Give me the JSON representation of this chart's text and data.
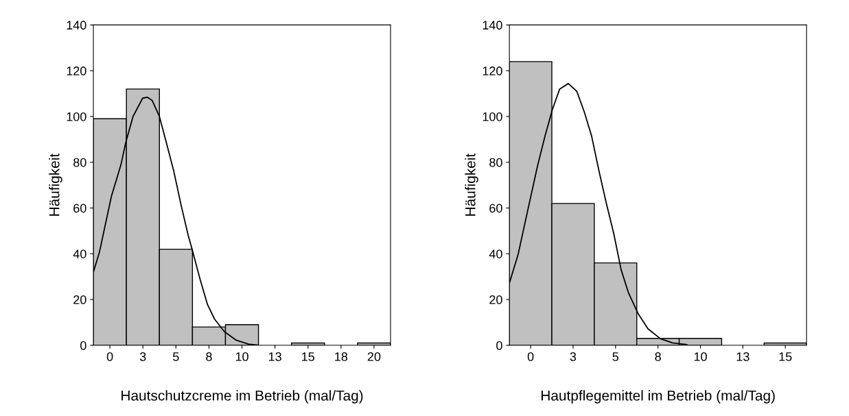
{
  "chart_data": [
    {
      "type": "histogram",
      "xlabel": "Hautschutzcreme im Betrieb (mal/Tag)",
      "ylabel": "Häufigkeit",
      "bins": [
        -1.25,
        1.25,
        3.75,
        6.25,
        8.75,
        11.25,
        13.75,
        16.25,
        18.75,
        21.25
      ],
      "values": [
        99,
        112,
        42,
        8,
        9,
        0,
        1,
        0,
        1
      ],
      "color": "#c0c0c0",
      "series": [
        {
          "type": "line",
          "color": "#000000",
          "x": [
            -1.25,
            -0.8,
            0.11,
            0.84,
            1.2,
            1.75,
            2.48,
            2.84,
            3.2,
            3.75,
            4.3,
            4.84,
            5.4,
            5.93,
            6.22,
            6.84,
            7.39,
            7.93,
            8.66,
            9.57,
            10.5,
            11.2
          ],
          "values": [
            32,
            40.5,
            65,
            79,
            88.6,
            100,
            108,
            108.4,
            107,
            100,
            88,
            76,
            61,
            48,
            42,
            28.6,
            17.8,
            11.4,
            6,
            2.2,
            0.5,
            0.1
          ]
        }
      ],
      "xlim": [
        -1.25,
        21.25
      ],
      "ylim": [
        0,
        140
      ],
      "xticks": [
        0,
        {
          "value": 2.5,
          "label": "3"
        },
        5,
        {
          "value": 7.5,
          "label": "8"
        },
        10,
        {
          "value": 12.5,
          "label": "13"
        },
        15,
        {
          "value": 17.5,
          "label": "18"
        },
        20
      ],
      "yticks": [
        0,
        20,
        40,
        60,
        80,
        100,
        120,
        140
      ],
      "grid": false,
      "legend": false
    },
    {
      "type": "histogram",
      "xlabel": "Hautpflegemittel im Betrieb (mal/Tag)",
      "ylabel": "Häufigkeit",
      "bins": [
        -1.25,
        1.25,
        3.75,
        6.25,
        8.75,
        11.25,
        13.75,
        16.25
      ],
      "values": [
        124,
        62,
        36,
        3,
        3,
        0,
        1
      ],
      "color": "#c0c0c0",
      "series": [
        {
          "type": "line",
          "color": "#000000",
          "x": [
            -1.25,
            -0.74,
            -0.17,
            0.41,
            0.85,
            1.28,
            1.71,
            2.22,
            2.72,
            3.16,
            3.59,
            4.02,
            4.46,
            4.89,
            5.33,
            5.76,
            6.34,
            6.91,
            7.64,
            8.36,
            9.2
          ],
          "values": [
            27.2,
            39.6,
            59,
            78.5,
            91.5,
            103,
            112,
            114.4,
            111,
            102,
            91.5,
            76.4,
            62,
            49,
            33,
            23,
            13.7,
            7.2,
            2.9,
            1,
            0.3
          ]
        }
      ],
      "xlim": [
        -1.25,
        16.25
      ],
      "ylim": [
        0,
        140
      ],
      "xticks": [
        0,
        {
          "value": 2.5,
          "label": "3"
        },
        5,
        {
          "value": 7.5,
          "label": "8"
        },
        10,
        {
          "value": 12.5,
          "label": "13"
        },
        15
      ],
      "yticks": [
        0,
        20,
        40,
        60,
        80,
        100,
        120,
        140
      ],
      "grid": false,
      "legend": false
    }
  ]
}
